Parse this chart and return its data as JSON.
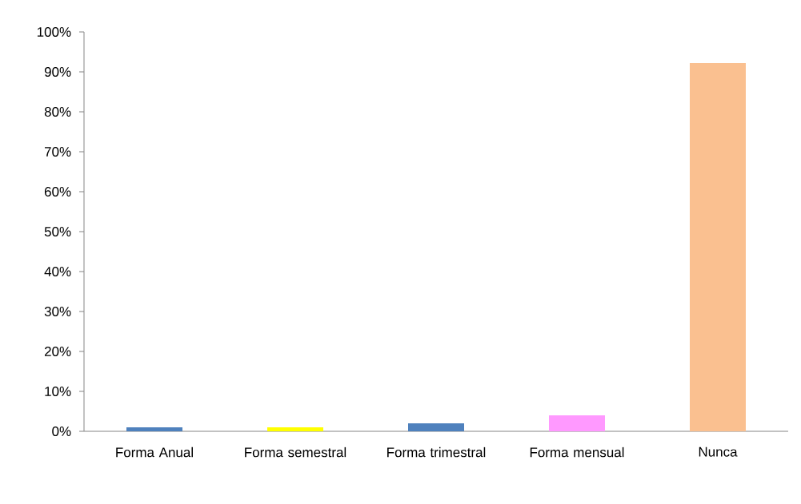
{
  "chart_data": {
    "type": "bar",
    "categories": [
      "Forma Anual",
      "Forma semestral",
      "Forma trimestral",
      "Forma mensual",
      "Nunca"
    ],
    "values": [
      1,
      1,
      2,
      4,
      92.2
    ],
    "colors": [
      "#4f81bd",
      "#ffff00",
      "#4f81bd",
      "#ff99ff",
      "#fac090"
    ],
    "ylim": [
      0,
      100
    ],
    "yticks": [
      {
        "value": 0,
        "label": "0%"
      },
      {
        "value": 10,
        "label": "10%"
      },
      {
        "value": 20,
        "label": "20%"
      },
      {
        "value": 30,
        "label": "30%"
      },
      {
        "value": 40,
        "label": "40%"
      },
      {
        "value": 50,
        "label": "50%"
      },
      {
        "value": 60,
        "label": "60%"
      },
      {
        "value": 70,
        "label": "70%"
      },
      {
        "value": 80,
        "label": "80%"
      },
      {
        "value": 90,
        "label": "90%"
      },
      {
        "value": 100,
        "label": "100%"
      }
    ],
    "grid": false
  }
}
